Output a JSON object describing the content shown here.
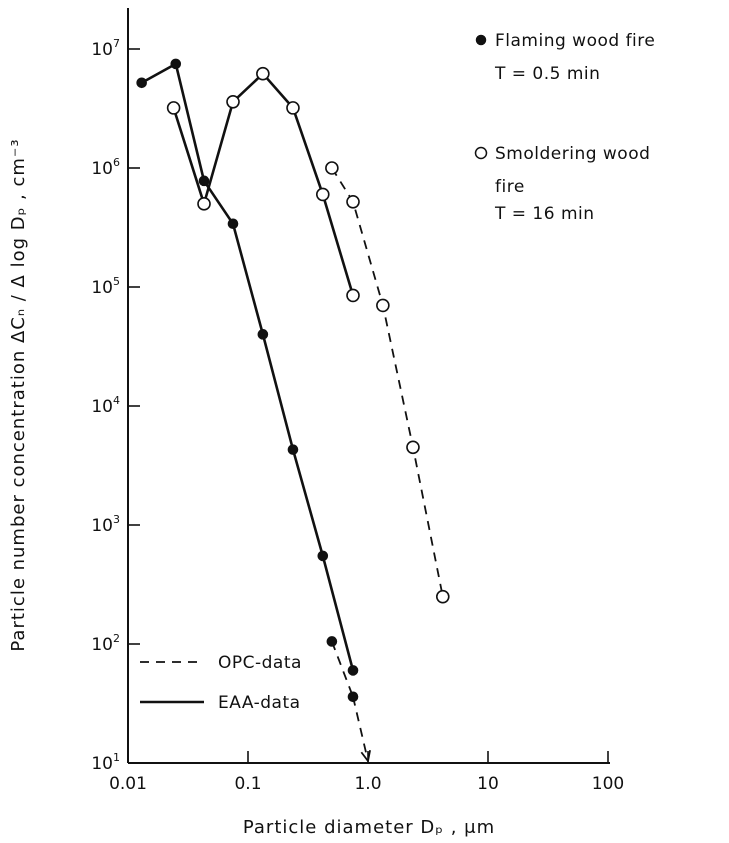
{
  "chart_data": {
    "type": "line",
    "x_scale": "log",
    "y_scale": "log",
    "xlim": [
      0.01,
      100
    ],
    "ylim": [
      10,
      10000000
    ],
    "x_ticks": [
      {
        "value": 0.01,
        "label": "0.01"
      },
      {
        "value": 0.1,
        "label": "0.1"
      },
      {
        "value": 1,
        "label": "1.0"
      },
      {
        "value": 10,
        "label": "10"
      },
      {
        "value": 100,
        "label": "100"
      }
    ],
    "y_ticks": [
      {
        "value": 10,
        "base": "10",
        "exp": "1"
      },
      {
        "value": 100,
        "base": "10",
        "exp": "2"
      },
      {
        "value": 1000,
        "base": "10",
        "exp": "3"
      },
      {
        "value": 10000,
        "base": "10",
        "exp": "4"
      },
      {
        "value": 100000,
        "base": "10",
        "exp": "5"
      },
      {
        "value": 1000000,
        "base": "10",
        "exp": "6"
      },
      {
        "value": 10000000,
        "base": "10",
        "exp": "7"
      }
    ],
    "xlabel": "Particle diameter Dₚ ,   μm",
    "ylabel": "Particle number concentration ΔCₙ / Δ log Dₚ ,   cm⁻³",
    "grid": false,
    "series": [
      {
        "name": "Flaming wood fire",
        "note": "T = 0.5 min",
        "marker": "filled-circle",
        "eaa": [
          [
            0.013,
            5200000
          ],
          [
            0.025,
            7500000
          ],
          [
            0.043,
            780000
          ],
          [
            0.075,
            340000
          ],
          [
            0.133,
            40000
          ],
          [
            0.237,
            4300
          ],
          [
            0.42,
            550
          ],
          [
            0.75,
            60
          ]
        ],
        "opc": [
          [
            0.5,
            105
          ],
          [
            0.75,
            36
          ]
        ],
        "extension_arrow": [
          [
            0.75,
            36
          ],
          [
            1.0,
            10
          ]
        ]
      },
      {
        "name": "Smoldering wood fire",
        "note": "T = 16 min",
        "marker": "open-circle",
        "eaa": [
          [
            0.024,
            3200000
          ],
          [
            0.043,
            500000
          ],
          [
            0.075,
            3600000
          ],
          [
            0.133,
            6200000
          ],
          [
            0.237,
            3200000
          ],
          [
            0.42,
            600000
          ],
          [
            0.75,
            85000
          ]
        ],
        "opc": [
          [
            0.5,
            1000000
          ],
          [
            0.75,
            520000
          ],
          [
            1.33,
            70000
          ],
          [
            2.37,
            4500
          ],
          [
            4.2,
            250
          ]
        ]
      }
    ],
    "legend": {
      "placement": "top-right",
      "lines": [
        {
          "symbol": "filled-circle",
          "text": "Flaming wood fire"
        },
        {
          "symbol": "none",
          "text": "T = 0.5 min"
        },
        {
          "symbol": "open-circle",
          "text": "Smoldering wood"
        },
        {
          "symbol": "none",
          "text": "fire"
        },
        {
          "symbol": "none",
          "text": "T = 16 min"
        }
      ],
      "line_styles": [
        {
          "style": "dashed",
          "text": "OPC-data"
        },
        {
          "style": "solid",
          "text": "EAA-data"
        }
      ]
    }
  }
}
